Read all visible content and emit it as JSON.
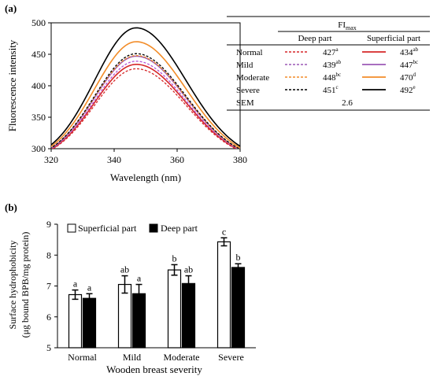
{
  "chart_data": [
    {
      "panel_label": "(a)",
      "type": "line",
      "xlabel": "Wavelength (nm)",
      "ylabel": "Fluorescence intensity",
      "xlim": [
        320,
        380
      ],
      "ylim": [
        300,
        500
      ],
      "x_ticks": [
        "320",
        "340",
        "360",
        "380"
      ],
      "y_ticks": [
        "300",
        "350",
        "400",
        "450",
        "500"
      ],
      "grid": false,
      "peak_x": 347,
      "series": [
        {
          "name": "Normal",
          "part": "Deep part",
          "peak": 427,
          "color": "#d62728",
          "dashed": true,
          "sup": "a"
        },
        {
          "name": "Normal",
          "part": "Superficial part",
          "peak": 434,
          "color": "#d62728",
          "dashed": false,
          "sup": "ab"
        },
        {
          "name": "Mild",
          "part": "Deep part",
          "peak": 439,
          "color": "#b44fd6",
          "dashed": true,
          "sup": "ab"
        },
        {
          "name": "Mild",
          "part": "Superficial part",
          "peak": 447,
          "color": "#9b59b6",
          "dashed": false,
          "sup": "bc"
        },
        {
          "name": "Moderate",
          "part": "Deep part",
          "peak": 448,
          "color": "#f28c28",
          "dashed": true,
          "sup": "bc"
        },
        {
          "name": "Moderate",
          "part": "Superficial part",
          "peak": 470,
          "color": "#f28c28",
          "dashed": false,
          "sup": "d"
        },
        {
          "name": "Severe",
          "part": "Deep part",
          "peak": 451,
          "color": "#000000",
          "dashed": true,
          "sup": "c"
        },
        {
          "name": "Severe",
          "part": "Superficial part",
          "peak": 492,
          "color": "#000000",
          "dashed": false,
          "sup": "e"
        }
      ],
      "table": {
        "header": "FI",
        "header_sub": "max",
        "columns": [
          "Deep part",
          "Superficial part"
        ],
        "rows": [
          {
            "label": "Normal",
            "deep": "427",
            "deep_sup": "a",
            "sup_val": "434",
            "sup_sup": "ab",
            "color": "#d62728"
          },
          {
            "label": "Mild",
            "deep": "439",
            "deep_sup": "ab",
            "sup_val": "447",
            "sup_sup": "bc",
            "color": "#9b59b6"
          },
          {
            "label": "Moderate",
            "deep": "448",
            "deep_sup": "bc",
            "sup_val": "470",
            "sup_sup": "d",
            "color": "#f28c28"
          },
          {
            "label": "Severe",
            "deep": "451",
            "deep_sup": "c",
            "sup_val": "492",
            "sup_sup": "e",
            "color": "#000000"
          }
        ],
        "sem_label": "SEM",
        "sem_value": "2.6"
      }
    },
    {
      "panel_label": "(b)",
      "type": "bar",
      "xlabel": "Wooden breast severity",
      "ylabel_line1": "Surface hydrophobicity",
      "ylabel_line2": "(μg bound BPB/mg protein)",
      "ylim": [
        5,
        9
      ],
      "y_ticks": [
        "5",
        "6",
        "7",
        "8",
        "9"
      ],
      "categories": [
        "Normal",
        "Mild",
        "Moderate",
        "Severe"
      ],
      "legend_position": "top-left",
      "grid": false,
      "series": [
        {
          "name": "Superficial part",
          "fill": "#ffffff",
          "values": [
            6.72,
            7.05,
            7.52,
            8.43
          ],
          "errors": [
            0.15,
            0.28,
            0.17,
            0.13
          ],
          "letters": [
            "a",
            "ab",
            "b",
            "c"
          ]
        },
        {
          "name": "Deep part",
          "fill": "#000000",
          "values": [
            6.6,
            6.75,
            7.08,
            7.6
          ],
          "errors": [
            0.15,
            0.3,
            0.25,
            0.12
          ],
          "letters": [
            "a",
            "a",
            "ab",
            "b"
          ]
        }
      ]
    }
  ]
}
